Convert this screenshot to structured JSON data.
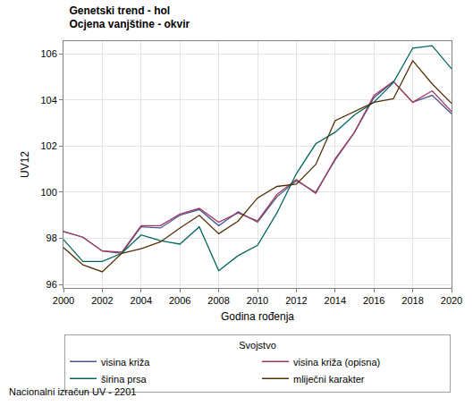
{
  "chart_data": {
    "type": "line",
    "title": "Genetski trend - hol",
    "subtitle": "Ocjena vanjštine - okvir",
    "x_label": "Godina rođenja",
    "y_label": "UV12",
    "legend_title": "Svojstvo",
    "note": "Nacionalni izračun UV - 2201",
    "legend": "bottom",
    "grid": true,
    "x": [
      2000,
      2001,
      2002,
      2003,
      2004,
      2005,
      2006,
      2007,
      2008,
      2009,
      2010,
      2011,
      2012,
      2013,
      2014,
      2015,
      2016,
      2017,
      2018,
      2019,
      2020
    ],
    "xlim": [
      2000,
      2020
    ],
    "xticks": [
      2000,
      2002,
      2004,
      2006,
      2008,
      2010,
      2012,
      2014,
      2016,
      2018,
      2020
    ],
    "ylim": [
      95.85,
      106.55
    ],
    "yticks": [
      96,
      98,
      100,
      102,
      104,
      106
    ],
    "series": [
      {
        "name": "visina križa",
        "color": "#445694",
        "values": [
          98.3,
          98.05,
          97.45,
          97.35,
          98.5,
          98.45,
          99.0,
          99.25,
          98.55,
          99.15,
          98.7,
          99.8,
          100.5,
          100.0,
          101.4,
          102.6,
          104.1,
          104.8,
          103.9,
          104.2,
          103.4
        ]
      },
      {
        "name": "visina križa (opisna)",
        "color": "#A23A5E",
        "values": [
          98.3,
          98.05,
          97.45,
          97.4,
          98.55,
          98.55,
          99.05,
          99.3,
          98.7,
          99.1,
          98.75,
          99.9,
          100.55,
          99.95,
          101.45,
          102.6,
          104.2,
          104.8,
          103.9,
          104.4,
          103.5
        ]
      },
      {
        "name": "širina prsa",
        "color": "#01665E",
        "values": [
          97.95,
          97.0,
          97.0,
          97.35,
          98.15,
          97.9,
          97.75,
          98.5,
          96.6,
          97.25,
          97.7,
          99.1,
          100.8,
          102.1,
          102.6,
          103.35,
          103.9,
          104.75,
          106.25,
          106.35,
          105.35
        ]
      },
      {
        "name": "mliječni karakter",
        "color": "#543005",
        "values": [
          97.6,
          96.85,
          96.55,
          97.35,
          97.55,
          97.85,
          98.45,
          99.0,
          98.2,
          98.75,
          99.75,
          100.25,
          100.35,
          101.2,
          103.1,
          103.5,
          103.9,
          104.05,
          105.7,
          104.7,
          103.85
        ]
      }
    ]
  }
}
